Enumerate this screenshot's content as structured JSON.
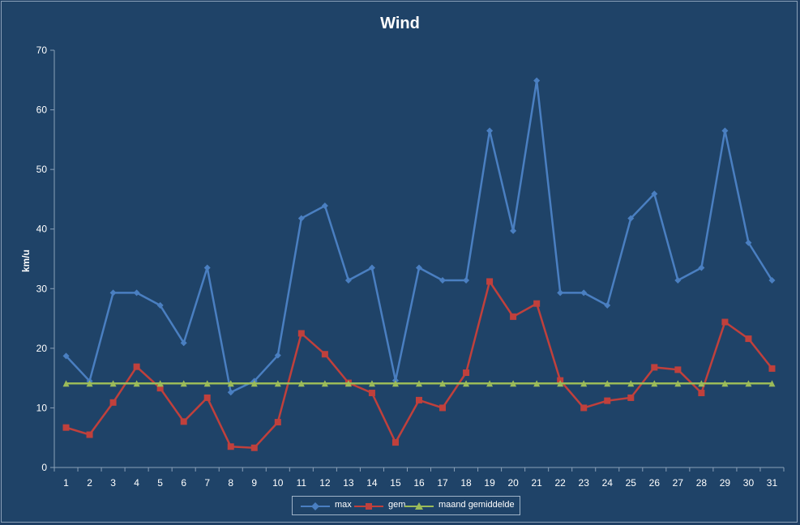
{
  "chart_data": {
    "type": "line",
    "title": "Wind",
    "ylabel": "km/u",
    "xlabel": "",
    "ylim": [
      0,
      70
    ],
    "yticks": [
      0,
      10,
      20,
      30,
      40,
      50,
      60,
      70
    ],
    "grid": false,
    "legend_position": "bottom",
    "categories": [
      "1",
      "2",
      "3",
      "4",
      "5",
      "6",
      "7",
      "8",
      "9",
      "10",
      "11",
      "12",
      "13",
      "14",
      "15",
      "16",
      "17",
      "18",
      "19",
      "20",
      "21",
      "22",
      "23",
      "24",
      "25",
      "26",
      "27",
      "28",
      "29",
      "30",
      "31"
    ],
    "series": [
      {
        "name": "max",
        "color": "#4a7fc1",
        "marker": "diamond",
        "values": [
          18.7,
          14.5,
          29.3,
          29.3,
          27.2,
          20.9,
          33.5,
          12.6,
          14.5,
          18.8,
          41.8,
          43.9,
          31.4,
          33.5,
          14.6,
          33.5,
          31.4,
          31.4,
          56.5,
          39.7,
          64.9,
          29.3,
          29.3,
          27.2,
          41.8,
          45.9,
          31.4,
          33.5,
          56.5,
          37.7,
          31.4
        ]
      },
      {
        "name": "gem",
        "color": "#c0403c",
        "marker": "square",
        "values": [
          6.7,
          5.5,
          10.9,
          16.9,
          13.3,
          7.7,
          11.7,
          3.5,
          3.3,
          7.6,
          22.5,
          19.0,
          14.2,
          12.5,
          4.2,
          11.3,
          10.0,
          15.9,
          31.2,
          25.3,
          27.5,
          14.6,
          10.0,
          11.2,
          11.7,
          16.8,
          16.4,
          12.5,
          24.4,
          21.6,
          16.6
        ]
      },
      {
        "name": "maand gemiddelde",
        "color": "#9bbb59",
        "marker": "triangle",
        "values": [
          14.1,
          14.1,
          14.1,
          14.1,
          14.1,
          14.1,
          14.1,
          14.1,
          14.1,
          14.1,
          14.1,
          14.1,
          14.1,
          14.1,
          14.1,
          14.1,
          14.1,
          14.1,
          14.1,
          14.1,
          14.1,
          14.1,
          14.1,
          14.1,
          14.1,
          14.1,
          14.1,
          14.1,
          14.1,
          14.1,
          14.1
        ]
      }
    ]
  }
}
